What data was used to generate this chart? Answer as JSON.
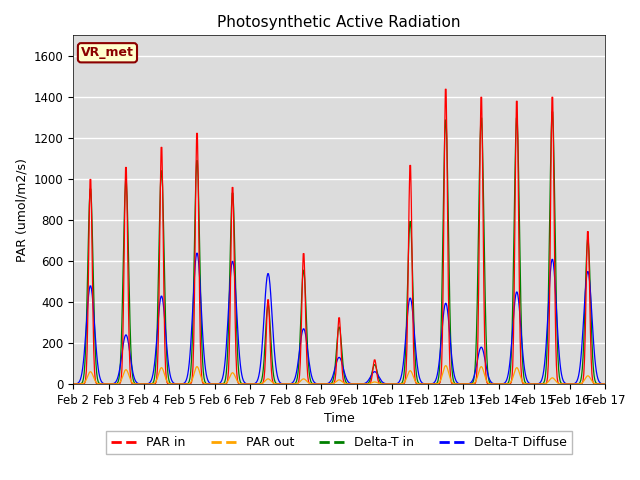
{
  "title": "Photosynthetic Active Radiation",
  "xlabel": "Time",
  "ylabel": "PAR (umol/m2/s)",
  "ylim": [
    0,
    1700
  ],
  "xlim": [
    0,
    360
  ],
  "bg_color": "#dcdcdc",
  "legend_labels": [
    "PAR in",
    "PAR out",
    "Delta-T in",
    "Delta-T Diffuse"
  ],
  "legend_colors": [
    "red",
    "orange",
    "green",
    "blue"
  ],
  "annotation_text": "VR_met",
  "annotation_bg": "#ffffcc",
  "annotation_border": "#8b0000",
  "xtick_labels": [
    "Feb 2",
    "Feb 3",
    "Feb 4",
    "Feb 5",
    "Feb 6",
    "Feb 7",
    "Feb 8",
    "Feb 9",
    "Feb 10",
    "Feb 11",
    "Feb 12",
    "Feb 13",
    "Feb 14",
    "Feb 15",
    "Feb 16",
    "Feb 17"
  ],
  "xtick_positions": [
    0,
    24,
    48,
    72,
    96,
    120,
    144,
    168,
    192,
    216,
    240,
    264,
    288,
    312,
    336,
    360
  ],
  "ytick_positions": [
    0,
    200,
    400,
    600,
    800,
    1000,
    1200,
    1400,
    1600
  ],
  "par_in_peaks": [
    1020,
    1080,
    1180,
    1250,
    980,
    420,
    650,
    330,
    120,
    1090,
    1470,
    1430,
    1410,
    1430,
    760
  ],
  "par_out_peaks": [
    60,
    70,
    80,
    85,
    55,
    25,
    25,
    20,
    10,
    65,
    90,
    85,
    80,
    30,
    40
  ],
  "delta_t_in_peaks": [
    960,
    1000,
    1050,
    1100,
    940,
    390,
    560,
    280,
    95,
    800,
    1300,
    1310,
    1310,
    1340,
    710
  ],
  "delta_t_diff_peaks": [
    480,
    240,
    430,
    640,
    600,
    540,
    270,
    130,
    60,
    420,
    395,
    180,
    450,
    610,
    550
  ],
  "par_in_sigma": 1.2,
  "par_out_sigma": 2.0,
  "delta_t_in_sigma": 1.8,
  "delta_t_diff_sigma": 2.8,
  "hours_per_day": 48,
  "n_days": 15
}
